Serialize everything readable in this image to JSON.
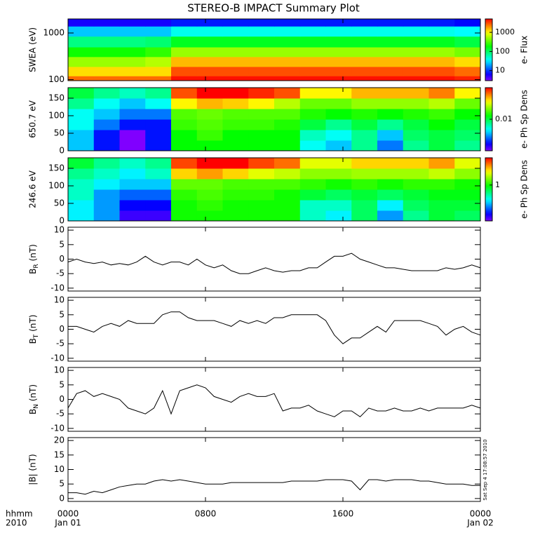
{
  "title": "STEREO-B IMPACT Summary Plot",
  "xaxis": {
    "xlim": [
      0,
      24
    ],
    "xticks": [
      {
        "value": 0,
        "label": "0000"
      },
      {
        "value": 8,
        "label": "0800"
      },
      {
        "value": 16,
        "label": "1600"
      },
      {
        "value": 24,
        "label": "0000"
      }
    ],
    "xdates": [
      {
        "value": 0,
        "label": "Jan 01"
      },
      {
        "value": 24,
        "label": "Jan 02"
      }
    ],
    "label": "hhmm",
    "year": "2010"
  },
  "timestamp": "Sat Sep  4 17:08:57 2010",
  "chart_data": [
    {
      "type": "heatmap",
      "ylabel": "SWEA (eV)",
      "log": true,
      "ylim": [
        95,
        2000
      ],
      "yticks": [
        100,
        1000
      ],
      "xbins": [
        0,
        1.5,
        3,
        4.5,
        6,
        7.5,
        9,
        10.5,
        12,
        13.5,
        15,
        16.5,
        18,
        19.5,
        21,
        22.5,
        24
      ],
      "ybins": [
        95,
        120,
        190,
        310,
        500,
        850,
        1400,
        2000
      ],
      "values": [
        [
          2500,
          2500,
          2500,
          2500,
          4500,
          4500,
          4500,
          4500,
          4500,
          4500,
          4500,
          4500,
          4500,
          4500,
          4500,
          4000
        ],
        [
          1200,
          1200,
          1200,
          1200,
          3000,
          3000,
          3000,
          3000,
          3000,
          3000,
          3000,
          3000,
          3000,
          3000,
          3000,
          2500
        ],
        [
          500,
          500,
          500,
          600,
          1500,
          1500,
          1500,
          1500,
          1500,
          1500,
          1500,
          1500,
          1500,
          1500,
          1500,
          1200
        ],
        [
          200,
          200,
          200,
          250,
          500,
          500,
          500,
          500,
          500,
          500,
          500,
          500,
          500,
          500,
          500,
          400
        ],
        [
          80,
          80,
          80,
          90,
          150,
          150,
          150,
          150,
          150,
          150,
          150,
          150,
          150,
          150,
          150,
          120
        ],
        [
          25,
          25,
          25,
          25,
          40,
          40,
          40,
          40,
          40,
          40,
          40,
          40,
          40,
          40,
          40,
          35
        ],
        [
          6,
          6,
          6,
          6,
          8,
          8,
          8,
          8,
          8,
          8,
          8,
          8,
          8,
          8,
          8,
          7
        ]
      ],
      "colormap": "rainbow",
      "clim": [
        3,
        5000
      ],
      "cticks": [
        10,
        100,
        1000
      ],
      "clabel": "e- Flux"
    },
    {
      "type": "heatmap",
      "ylabel": "650.7 eV",
      "log": false,
      "ylim": [
        0,
        180
      ],
      "yticks": [
        0,
        50,
        100,
        150
      ],
      "xbins": [
        0,
        1.5,
        3,
        4.5,
        6,
        7.5,
        9,
        10.5,
        12,
        13.5,
        15,
        16.5,
        18,
        19.5,
        21,
        22.5,
        24
      ],
      "ybins": [
        0,
        30,
        60,
        90,
        120,
        150,
        180
      ],
      "values": [
        [
          0.005,
          0.003,
          0.002,
          0.003,
          0.012,
          0.012,
          0.012,
          0.012,
          0.012,
          0.006,
          0.005,
          0.008,
          0.004,
          0.008,
          0.01,
          0.008
        ],
        [
          0.005,
          0.003,
          0.002,
          0.003,
          0.012,
          0.014,
          0.012,
          0.012,
          0.012,
          0.007,
          0.006,
          0.008,
          0.005,
          0.009,
          0.01,
          0.009
        ],
        [
          0.006,
          0.004,
          0.003,
          0.003,
          0.014,
          0.015,
          0.014,
          0.014,
          0.013,
          0.01,
          0.008,
          0.01,
          0.008,
          0.01,
          0.012,
          0.01
        ],
        [
          0.006,
          0.005,
          0.004,
          0.004,
          0.015,
          0.016,
          0.015,
          0.015,
          0.015,
          0.013,
          0.012,
          0.013,
          0.012,
          0.013,
          0.014,
          0.012
        ],
        [
          0.008,
          0.006,
          0.005,
          0.006,
          0.025,
          0.03,
          0.028,
          0.025,
          0.02,
          0.016,
          0.016,
          0.018,
          0.018,
          0.018,
          0.02,
          0.016
        ],
        [
          0.01,
          0.008,
          0.007,
          0.008,
          0.04,
          0.05,
          0.05,
          0.045,
          0.04,
          0.025,
          0.025,
          0.03,
          0.03,
          0.03,
          0.035,
          0.025
        ]
      ],
      "colormap": "rainbow",
      "clim": [
        0.002,
        0.05
      ],
      "cticks": [
        0.01
      ],
      "clabel": "e- Ph Sp Dens"
    },
    {
      "type": "heatmap",
      "ylabel": "246.6 eV",
      "log": false,
      "ylim": [
        0,
        180
      ],
      "yticks": [
        0,
        50,
        100,
        150
      ],
      "xbins": [
        0,
        1.5,
        3,
        4.5,
        6,
        7.5,
        9,
        10.5,
        12,
        13.5,
        15,
        16.5,
        18,
        19.5,
        21,
        22.5,
        24
      ],
      "ybins": [
        0,
        30,
        60,
        90,
        120,
        150,
        180
      ],
      "values": [
        [
          0.4,
          0.3,
          0.15,
          0.15,
          1.0,
          1.0,
          1.0,
          1.0,
          1.0,
          0.5,
          0.4,
          0.7,
          0.3,
          0.6,
          0.8,
          0.7
        ],
        [
          0.4,
          0.3,
          0.18,
          0.18,
          1.0,
          1.1,
          1.0,
          1.0,
          1.0,
          0.5,
          0.5,
          0.7,
          0.4,
          0.7,
          0.8,
          0.8
        ],
        [
          0.5,
          0.3,
          0.25,
          0.25,
          1.1,
          1.2,
          1.1,
          1.1,
          1.0,
          0.8,
          0.7,
          0.8,
          0.7,
          0.8,
          0.9,
          0.9
        ],
        [
          0.5,
          0.4,
          0.35,
          0.35,
          1.3,
          1.3,
          1.2,
          1.2,
          1.2,
          1.1,
          1.0,
          1.1,
          1.0,
          1.1,
          1.1,
          1.0
        ],
        [
          0.6,
          0.5,
          0.4,
          0.5,
          2.5,
          3.0,
          2.5,
          2.0,
          1.8,
          1.5,
          1.5,
          1.6,
          1.6,
          1.6,
          1.8,
          1.5
        ],
        [
          0.8,
          0.6,
          0.5,
          0.6,
          4.0,
          5.0,
          5.0,
          4.0,
          3.5,
          2.0,
          2.0,
          2.5,
          2.5,
          2.5,
          3.0,
          2.0
        ]
      ],
      "colormap": "rainbow",
      "clim": [
        0.12,
        5
      ],
      "cticks": [
        1
      ],
      "clabel": "e- Ph Sp Dens"
    },
    {
      "type": "line",
      "ylabel": {
        "main": "B",
        "sub": "R",
        "unit": " (nT)"
      },
      "ylim": [
        -11,
        11
      ],
      "yticks": [
        -10,
        -5,
        0,
        5,
        10
      ],
      "color": "#000000",
      "x": [
        0,
        0.5,
        1,
        1.5,
        2,
        2.5,
        3,
        3.5,
        4,
        4.5,
        5,
        5.5,
        6,
        6.5,
        7,
        7.5,
        8,
        8.5,
        9,
        9.5,
        10,
        10.5,
        11,
        11.5,
        12,
        12.5,
        13,
        13.5,
        14,
        14.5,
        15,
        15.5,
        16,
        16.5,
        17,
        17.5,
        18,
        18.5,
        19,
        19.5,
        20,
        20.5,
        21,
        21.5,
        22,
        22.5,
        23,
        23.5,
        24
      ],
      "values": [
        -1,
        0,
        -1,
        -1.5,
        -1,
        -2,
        -1.5,
        -2,
        -1,
        1,
        -1,
        -2,
        -1,
        -1,
        -2,
        0,
        -2,
        -3,
        -2,
        -4,
        -5,
        -5,
        -4,
        -3,
        -4,
        -4.5,
        -4,
        -4,
        -3,
        -3,
        -1,
        1,
        1,
        2,
        0,
        -1,
        -2,
        -3,
        -3,
        -3.5,
        -4,
        -4,
        -4,
        -4,
        -3,
        -3.5,
        -3,
        -2,
        -3
      ]
    },
    {
      "type": "line",
      "ylabel": {
        "main": "B",
        "sub": "T",
        "unit": " (nT)"
      },
      "ylim": [
        -11,
        11
      ],
      "yticks": [
        -10,
        -5,
        0,
        5,
        10
      ],
      "color": "#000000",
      "x": [
        0,
        0.5,
        1,
        1.5,
        2,
        2.5,
        3,
        3.5,
        4,
        4.5,
        5,
        5.5,
        6,
        6.5,
        7,
        7.5,
        8,
        8.5,
        9,
        9.5,
        10,
        10.5,
        11,
        11.5,
        12,
        12.5,
        13,
        13.5,
        14,
        14.5,
        15,
        15.5,
        16,
        16.5,
        17,
        17.5,
        18,
        18.5,
        19,
        19.5,
        20,
        20.5,
        21,
        21.5,
        22,
        22.5,
        23,
        23.5,
        24
      ],
      "values": [
        1,
        1,
        0,
        -1,
        1,
        2,
        1,
        3,
        2,
        2,
        2,
        5,
        6,
        6,
        4,
        3,
        3,
        3,
        2,
        1,
        3,
        2,
        3,
        2,
        4,
        4,
        5,
        5,
        5,
        5,
        3,
        -2,
        -5,
        -3,
        -3,
        -1,
        1,
        -1,
        3,
        3,
        3,
        3,
        2,
        1,
        -2,
        0,
        1,
        -1,
        -2
      ]
    },
    {
      "type": "line",
      "ylabel": {
        "main": "B",
        "sub": "N",
        "unit": " (nT)"
      },
      "ylim": [
        -11,
        11
      ],
      "yticks": [
        -10,
        -5,
        0,
        5,
        10
      ],
      "color": "#000000",
      "x": [
        0,
        0.5,
        1,
        1.5,
        2,
        2.5,
        3,
        3.5,
        4,
        4.5,
        5,
        5.5,
        6,
        6.5,
        7,
        7.5,
        8,
        8.5,
        9,
        9.5,
        10,
        10.5,
        11,
        11.5,
        12,
        12.5,
        13,
        13.5,
        14,
        14.5,
        15,
        15.5,
        16,
        16.5,
        17,
        17.5,
        18,
        18.5,
        19,
        19.5,
        20,
        20.5,
        21,
        21.5,
        22,
        22.5,
        23,
        23.5,
        24
      ],
      "values": [
        -3,
        2,
        3,
        1,
        2,
        1,
        0,
        -3,
        -4,
        -5,
        -3,
        3,
        -5,
        3,
        4,
        5,
        4,
        1,
        0,
        -1,
        1,
        2,
        1,
        1,
        2,
        -4,
        -3,
        -3,
        -2,
        -4,
        -5,
        -6,
        -4,
        -4,
        -6,
        -3,
        -4,
        -4,
        -3,
        -4,
        -4,
        -3,
        -4,
        -3,
        -3,
        -3,
        -3,
        -2,
        -3
      ]
    },
    {
      "type": "line",
      "ylabel": "|B| (nT)",
      "ylim": [
        -1,
        21
      ],
      "yticks": [
        0,
        5,
        10,
        15,
        20
      ],
      "color": "#000000",
      "x": [
        0,
        0.5,
        1,
        1.5,
        2,
        2.5,
        3,
        3.5,
        4,
        4.5,
        5,
        5.5,
        6,
        6.5,
        7,
        7.5,
        8,
        8.5,
        9,
        9.5,
        10,
        10.5,
        11,
        11.5,
        12,
        12.5,
        13,
        13.5,
        14,
        14.5,
        15,
        15.5,
        16,
        16.5,
        17,
        17.5,
        18,
        18.5,
        19,
        19.5,
        20,
        20.5,
        21,
        21.5,
        22,
        22.5,
        23,
        23.5,
        24
      ],
      "values": [
        2,
        2,
        1.5,
        2.5,
        2,
        3,
        4,
        4.5,
        5,
        5,
        6,
        6.5,
        6,
        6.5,
        6,
        5.5,
        5,
        5,
        5,
        5.5,
        5.5,
        5.5,
        5.5,
        5.5,
        5.5,
        5.5,
        6,
        6,
        6,
        6,
        6.5,
        6.5,
        6.5,
        6,
        3,
        6.5,
        6.5,
        6,
        6.5,
        6.5,
        6.5,
        6,
        6,
        5.5,
        5,
        5,
        5,
        4.5,
        4.5
      ]
    }
  ]
}
